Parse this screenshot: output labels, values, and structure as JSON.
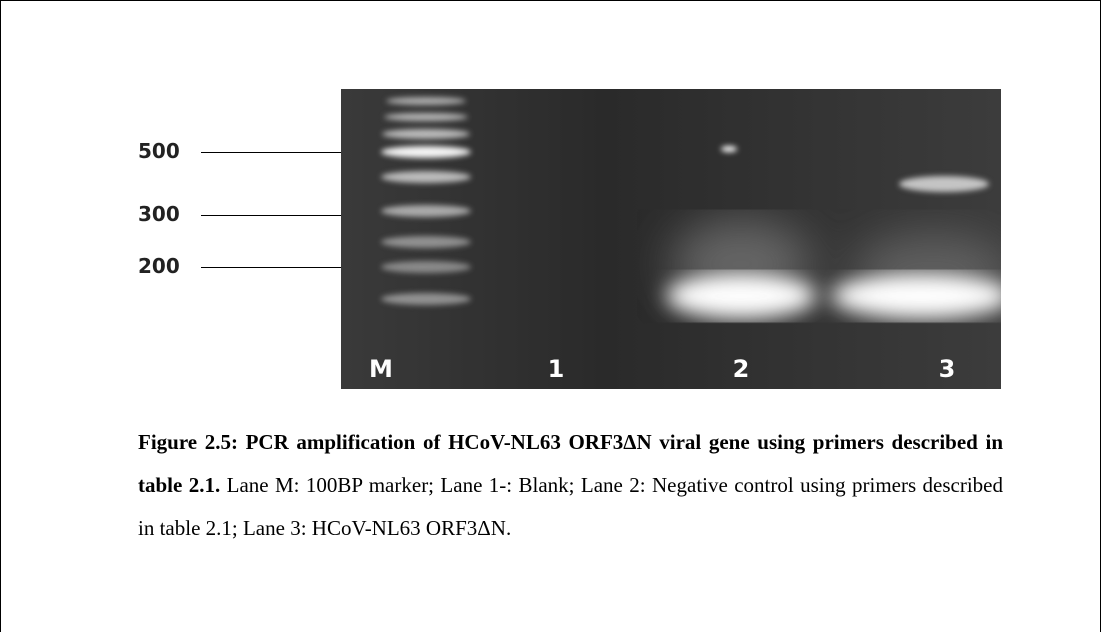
{
  "figure": {
    "marker_labels": [
      "500",
      "300",
      "200"
    ],
    "lane_labels": [
      "M",
      "1",
      "2",
      "3"
    ],
    "caption": {
      "title": "Figure 2.5: PCR amplification of HCoV-NL63 ORF3ΔN viral gene using primers described in table 2.1.",
      "text": "Lane M: 100BP marker; Lane 1-: Blank; Lane 2: Negative control using primers described in table 2.1; Lane 3: HCoV-NL63 ORF3ΔN."
    }
  }
}
